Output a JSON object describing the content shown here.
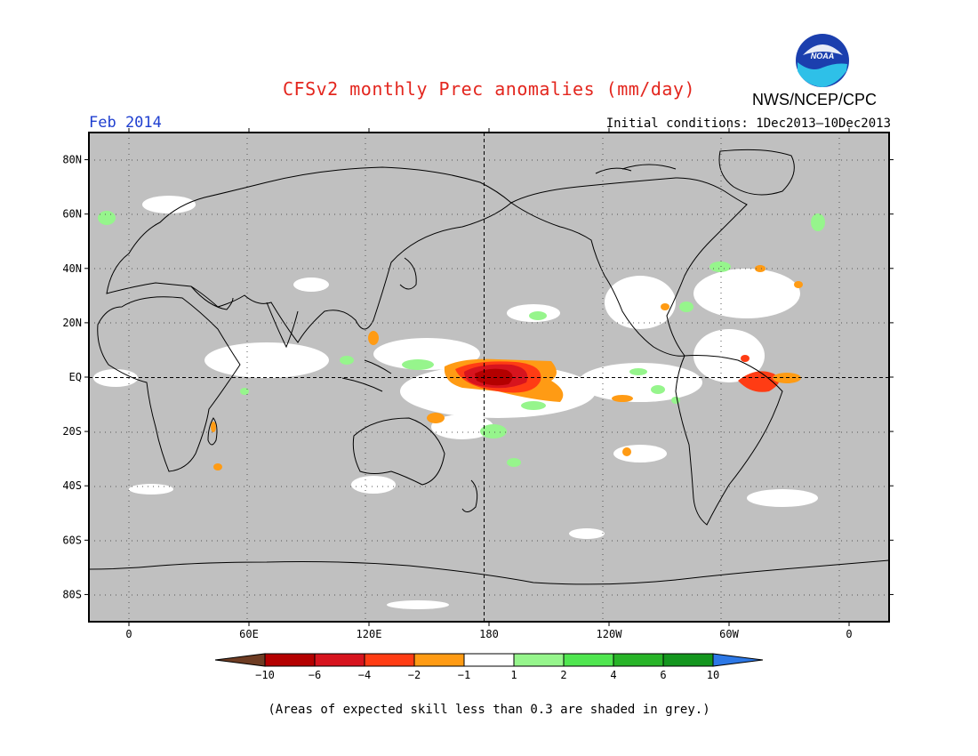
{
  "header": {
    "title": "CFSv2 monthly Prec anomalies (mm/day)",
    "organization": "NWS/NCEP/CPC",
    "logo_text": "NOAA",
    "period": "Feb 2014",
    "initial_conditions": "Initial conditions: 1Dec2013–10Dec2013"
  },
  "map": {
    "lon_range": [
      -20,
      380
    ],
    "lat_range": [
      -90,
      90
    ],
    "lat_ticks": [
      {
        "value": 80,
        "label": "80N"
      },
      {
        "value": 60,
        "label": "60N"
      },
      {
        "value": 40,
        "label": "40N"
      },
      {
        "value": 20,
        "label": "20N"
      },
      {
        "value": 0,
        "label": "EQ"
      },
      {
        "value": -20,
        "label": "20S"
      },
      {
        "value": -40,
        "label": "40S"
      },
      {
        "value": -60,
        "label": "60S"
      },
      {
        "value": -80,
        "label": "80S"
      }
    ],
    "lon_ticks": [
      {
        "value": 0,
        "label": "0"
      },
      {
        "value": 60,
        "label": "60E"
      },
      {
        "value": 120,
        "label": "120E"
      },
      {
        "value": 180,
        "label": "180"
      },
      {
        "value": 240,
        "label": "120W"
      },
      {
        "value": 300,
        "label": "60W"
      },
      {
        "value": 360,
        "label": "0"
      }
    ],
    "colors": {
      "grey_low_skill": "#c0c0c0",
      "neutral": "#ffffff",
      "coast": "#000000"
    }
  },
  "colorbar": {
    "colors": [
      "#6e3c23",
      "#b40000",
      "#d7141e",
      "#ff3c14",
      "#ff9b14",
      "#ffffff",
      "#96f58c",
      "#50e650",
      "#28b428",
      "#14961e",
      "#2d78e6"
    ],
    "labels": [
      "−10",
      "−6",
      "−4",
      "−2",
      "−1",
      "1",
      "2",
      "4",
      "6",
      "10"
    ]
  },
  "footnote": "(Areas of expected skill less than 0.3 are shaded in grey.)"
}
